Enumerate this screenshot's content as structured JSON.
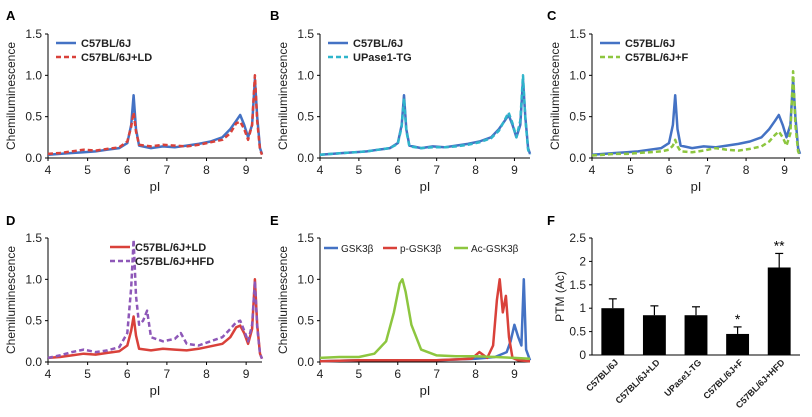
{
  "colors": {
    "blue": "#4472C4",
    "red": "#D9413A",
    "purple": "#8E58B8",
    "teal": "#2FB5CB",
    "green": "#8DC63F",
    "bar": "#000000"
  },
  "chart_data": [
    {
      "panel_letter": "A",
      "type": "line",
      "ylabel": "Chemiluminescence",
      "xlabel": "pI",
      "xlim": [
        4,
        9.4
      ],
      "ylim": [
        0,
        1.5
      ],
      "xticks": [
        "4",
        "5",
        "6",
        "7",
        "8",
        "9"
      ],
      "yticks": [
        "0.0",
        "0.5",
        "1.0",
        "1.5"
      ],
      "series": [
        {
          "name": "C57BL/6J",
          "color": "#4472C4",
          "dash": "solid",
          "x": [
            4.0,
            4.3,
            4.6,
            4.9,
            5.2,
            5.5,
            5.8,
            6.0,
            6.1,
            6.16,
            6.22,
            6.3,
            6.6,
            6.9,
            7.2,
            7.5,
            7.8,
            8.1,
            8.4,
            8.6,
            8.75,
            8.85,
            8.95,
            9.05,
            9.15,
            9.22,
            9.28,
            9.35,
            9.4
          ],
          "y": [
            0.04,
            0.05,
            0.06,
            0.07,
            0.08,
            0.1,
            0.12,
            0.18,
            0.4,
            0.76,
            0.35,
            0.15,
            0.12,
            0.14,
            0.13,
            0.15,
            0.17,
            0.2,
            0.25,
            0.35,
            0.45,
            0.52,
            0.4,
            0.25,
            0.4,
            0.95,
            0.5,
            0.12,
            0.05
          ]
        },
        {
          "name": "C57BL/6J+LD",
          "color": "#D9413A",
          "dash": "dashed",
          "x": [
            4.0,
            4.3,
            4.6,
            4.9,
            5.2,
            5.5,
            5.8,
            6.0,
            6.1,
            6.16,
            6.22,
            6.3,
            6.6,
            6.9,
            7.2,
            7.5,
            7.8,
            8.1,
            8.4,
            8.6,
            8.75,
            8.85,
            8.95,
            9.05,
            9.15,
            9.22,
            9.28,
            9.35,
            9.4
          ],
          "y": [
            0.05,
            0.06,
            0.08,
            0.1,
            0.09,
            0.11,
            0.13,
            0.2,
            0.38,
            0.55,
            0.32,
            0.16,
            0.14,
            0.16,
            0.15,
            0.14,
            0.16,
            0.19,
            0.22,
            0.3,
            0.42,
            0.44,
            0.35,
            0.22,
            0.4,
            1.0,
            0.45,
            0.1,
            0.04
          ]
        }
      ],
      "legend_position": "top-left"
    },
    {
      "panel_letter": "B",
      "type": "line",
      "ylabel": "Chemiluminescence",
      "xlabel": "pI",
      "xlim": [
        4,
        9.4
      ],
      "ylim": [
        0,
        1.5
      ],
      "xticks": [
        "4",
        "5",
        "6",
        "7",
        "8",
        "9"
      ],
      "yticks": [
        "0.0",
        "0.5",
        "1.0",
        "1.5"
      ],
      "series": [
        {
          "name": "C57BL/6J",
          "color": "#4472C4",
          "dash": "solid",
          "x": [
            4.0,
            4.3,
            4.6,
            4.9,
            5.2,
            5.5,
            5.8,
            6.0,
            6.1,
            6.16,
            6.22,
            6.3,
            6.6,
            6.9,
            7.2,
            7.5,
            7.8,
            8.1,
            8.4,
            8.6,
            8.75,
            8.85,
            8.95,
            9.05,
            9.15,
            9.22,
            9.28,
            9.35,
            9.4
          ],
          "y": [
            0.04,
            0.05,
            0.06,
            0.07,
            0.08,
            0.1,
            0.12,
            0.18,
            0.4,
            0.76,
            0.35,
            0.15,
            0.12,
            0.14,
            0.13,
            0.15,
            0.17,
            0.2,
            0.25,
            0.35,
            0.45,
            0.52,
            0.4,
            0.25,
            0.4,
            0.95,
            0.5,
            0.12,
            0.05
          ]
        },
        {
          "name": "UPase1-TG",
          "color": "#2FB5CB",
          "dash": "dashed",
          "x": [
            4.0,
            4.3,
            4.6,
            4.9,
            5.2,
            5.5,
            5.8,
            6.0,
            6.1,
            6.16,
            6.22,
            6.3,
            6.6,
            6.9,
            7.2,
            7.5,
            7.8,
            8.1,
            8.4,
            8.6,
            8.75,
            8.85,
            8.95,
            9.05,
            9.15,
            9.22,
            9.28,
            9.35,
            9.4
          ],
          "y": [
            0.04,
            0.05,
            0.06,
            0.07,
            0.08,
            0.1,
            0.12,
            0.17,
            0.38,
            0.72,
            0.33,
            0.14,
            0.12,
            0.13,
            0.13,
            0.14,
            0.16,
            0.19,
            0.24,
            0.33,
            0.46,
            0.55,
            0.42,
            0.25,
            0.45,
            1.0,
            0.48,
            0.1,
            0.04
          ]
        }
      ],
      "legend_position": "top-left"
    },
    {
      "panel_letter": "C",
      "type": "line",
      "ylabel": "Chemiluminescence",
      "xlabel": "pI",
      "xlim": [
        4,
        9.4
      ],
      "ylim": [
        0,
        1.5
      ],
      "xticks": [
        "4",
        "5",
        "6",
        "7",
        "8",
        "9"
      ],
      "yticks": [
        "0.0",
        "0.5",
        "1.0",
        "1.5"
      ],
      "series": [
        {
          "name": "C57BL/6J",
          "color": "#4472C4",
          "dash": "solid",
          "x": [
            4.0,
            4.3,
            4.6,
            4.9,
            5.2,
            5.5,
            5.8,
            6.0,
            6.1,
            6.16,
            6.22,
            6.3,
            6.6,
            6.9,
            7.2,
            7.5,
            7.8,
            8.1,
            8.4,
            8.6,
            8.75,
            8.85,
            8.95,
            9.05,
            9.15,
            9.22,
            9.28,
            9.35,
            9.4
          ],
          "y": [
            0.04,
            0.05,
            0.06,
            0.07,
            0.08,
            0.1,
            0.12,
            0.18,
            0.4,
            0.76,
            0.35,
            0.15,
            0.12,
            0.14,
            0.13,
            0.15,
            0.17,
            0.2,
            0.25,
            0.35,
            0.45,
            0.52,
            0.4,
            0.25,
            0.4,
            0.95,
            0.5,
            0.12,
            0.05
          ]
        },
        {
          "name": "C57BL/6J+F",
          "color": "#8DC63F",
          "dash": "dashed",
          "x": [
            4.0,
            4.3,
            4.6,
            4.9,
            5.2,
            5.5,
            5.8,
            6.0,
            6.1,
            6.16,
            6.22,
            6.3,
            6.6,
            6.9,
            7.2,
            7.5,
            7.8,
            8.1,
            8.4,
            8.6,
            8.75,
            8.85,
            8.95,
            9.05,
            9.15,
            9.22,
            9.28,
            9.35,
            9.4
          ],
          "y": [
            0.03,
            0.04,
            0.05,
            0.05,
            0.06,
            0.07,
            0.08,
            0.1,
            0.15,
            0.22,
            0.14,
            0.08,
            0.07,
            0.09,
            0.12,
            0.1,
            0.09,
            0.11,
            0.14,
            0.2,
            0.28,
            0.32,
            0.25,
            0.15,
            0.3,
            1.05,
            0.4,
            0.08,
            0.03
          ]
        }
      ],
      "legend_position": "top-left"
    },
    {
      "panel_letter": "D",
      "type": "line",
      "ylabel": "Chemiluminescence",
      "xlabel": "pI",
      "xlim": [
        4,
        9.4
      ],
      "ylim": [
        0,
        1.5
      ],
      "xticks": [
        "4",
        "5",
        "6",
        "7",
        "8",
        "9"
      ],
      "yticks": [
        "0.0",
        "0.5",
        "1.0",
        "1.5"
      ],
      "series": [
        {
          "name": "C57BL/6J+LD",
          "color": "#D9413A",
          "dash": "solid",
          "x": [
            4.0,
            4.3,
            4.6,
            4.9,
            5.2,
            5.5,
            5.8,
            6.0,
            6.1,
            6.16,
            6.22,
            6.3,
            6.6,
            6.9,
            7.2,
            7.5,
            7.8,
            8.1,
            8.4,
            8.6,
            8.75,
            8.85,
            8.95,
            9.05,
            9.15,
            9.22,
            9.28,
            9.35,
            9.4
          ],
          "y": [
            0.05,
            0.06,
            0.08,
            0.1,
            0.09,
            0.11,
            0.13,
            0.2,
            0.38,
            0.55,
            0.32,
            0.16,
            0.14,
            0.16,
            0.15,
            0.14,
            0.16,
            0.19,
            0.22,
            0.3,
            0.42,
            0.44,
            0.35,
            0.22,
            0.4,
            1.0,
            0.45,
            0.1,
            0.04
          ]
        },
        {
          "name": "C57BL/6J+HFD",
          "color": "#8E58B8",
          "dash": "dashed",
          "x": [
            4.0,
            4.3,
            4.6,
            4.9,
            5.2,
            5.5,
            5.8,
            6.0,
            6.1,
            6.16,
            6.22,
            6.3,
            6.4,
            6.5,
            6.6,
            6.9,
            7.2,
            7.35,
            7.5,
            7.8,
            8.1,
            8.4,
            8.6,
            8.75,
            8.85,
            8.95,
            9.05,
            9.15,
            9.22,
            9.28,
            9.35,
            9.4
          ],
          "y": [
            0.05,
            0.08,
            0.12,
            0.15,
            0.12,
            0.14,
            0.18,
            0.35,
            0.9,
            1.48,
            0.8,
            0.45,
            0.5,
            0.62,
            0.3,
            0.25,
            0.28,
            0.35,
            0.22,
            0.2,
            0.25,
            0.3,
            0.4,
            0.48,
            0.5,
            0.38,
            0.25,
            0.45,
            0.98,
            0.42,
            0.1,
            0.04
          ]
        }
      ],
      "legend_position": "top-right"
    },
    {
      "panel_letter": "E",
      "type": "line",
      "ylabel": "Chemiluminescence",
      "xlabel": "pI",
      "xlim": [
        4,
        9.4
      ],
      "ylim": [
        0,
        1.5
      ],
      "xticks": [
        "4",
        "5",
        "6",
        "7",
        "8",
        "9"
      ],
      "yticks": [
        "0.0",
        "0.5",
        "1.0",
        "1.5"
      ],
      "series": [
        {
          "name": "GSK3β",
          "color": "#4472C4",
          "dash": "solid",
          "x": [
            4.0,
            5.0,
            6.0,
            7.0,
            8.0,
            8.5,
            8.8,
            8.9,
            9.0,
            9.1,
            9.18,
            9.24,
            9.3,
            9.4
          ],
          "y": [
            0.01,
            0.02,
            0.02,
            0.02,
            0.04,
            0.06,
            0.12,
            0.25,
            0.45,
            0.3,
            0.2,
            1.0,
            0.15,
            0.02
          ]
        },
        {
          "name": "p-GSK3β",
          "color": "#D9413A",
          "dash": "solid",
          "x": [
            4.0,
            5.0,
            6.0,
            7.0,
            7.9,
            8.1,
            8.3,
            8.45,
            8.55,
            8.62,
            8.7,
            8.78,
            8.86,
            8.95,
            9.1,
            9.4
          ],
          "y": [
            0.01,
            0.02,
            0.02,
            0.02,
            0.04,
            0.12,
            0.05,
            0.2,
            0.75,
            1.0,
            0.6,
            0.8,
            0.3,
            0.05,
            0.02,
            0.01
          ]
        },
        {
          "name": "Ac-GSK3β",
          "color": "#8DC63F",
          "dash": "solid",
          "x": [
            4.0,
            4.5,
            5.0,
            5.4,
            5.7,
            5.9,
            6.05,
            6.12,
            6.2,
            6.35,
            6.6,
            7.0,
            7.5,
            8.0,
            8.5,
            9.0,
            9.4
          ],
          "y": [
            0.05,
            0.06,
            0.06,
            0.1,
            0.25,
            0.6,
            0.95,
            1.0,
            0.85,
            0.45,
            0.15,
            0.08,
            0.07,
            0.07,
            0.06,
            0.05,
            0.04
          ]
        }
      ],
      "legend_position": "top"
    },
    {
      "panel_letter": "F",
      "type": "bar",
      "ylabel": "PTM (Ac)",
      "ylim": [
        0,
        2.5
      ],
      "yticks": [
        "0",
        "0.5",
        "1",
        "1.5",
        "2",
        "2.5"
      ],
      "categories": [
        "C57BL/6J",
        "C57BL/6J+LD",
        "UPase1-TG",
        "C57BL/6J+F",
        "C57BL/6J+HFD"
      ],
      "values": [
        1.0,
        0.85,
        0.85,
        0.45,
        1.87
      ],
      "errors": [
        0.2,
        0.2,
        0.18,
        0.15,
        0.3
      ],
      "significance": [
        "",
        "",
        "",
        "*",
        "**"
      ]
    }
  ]
}
